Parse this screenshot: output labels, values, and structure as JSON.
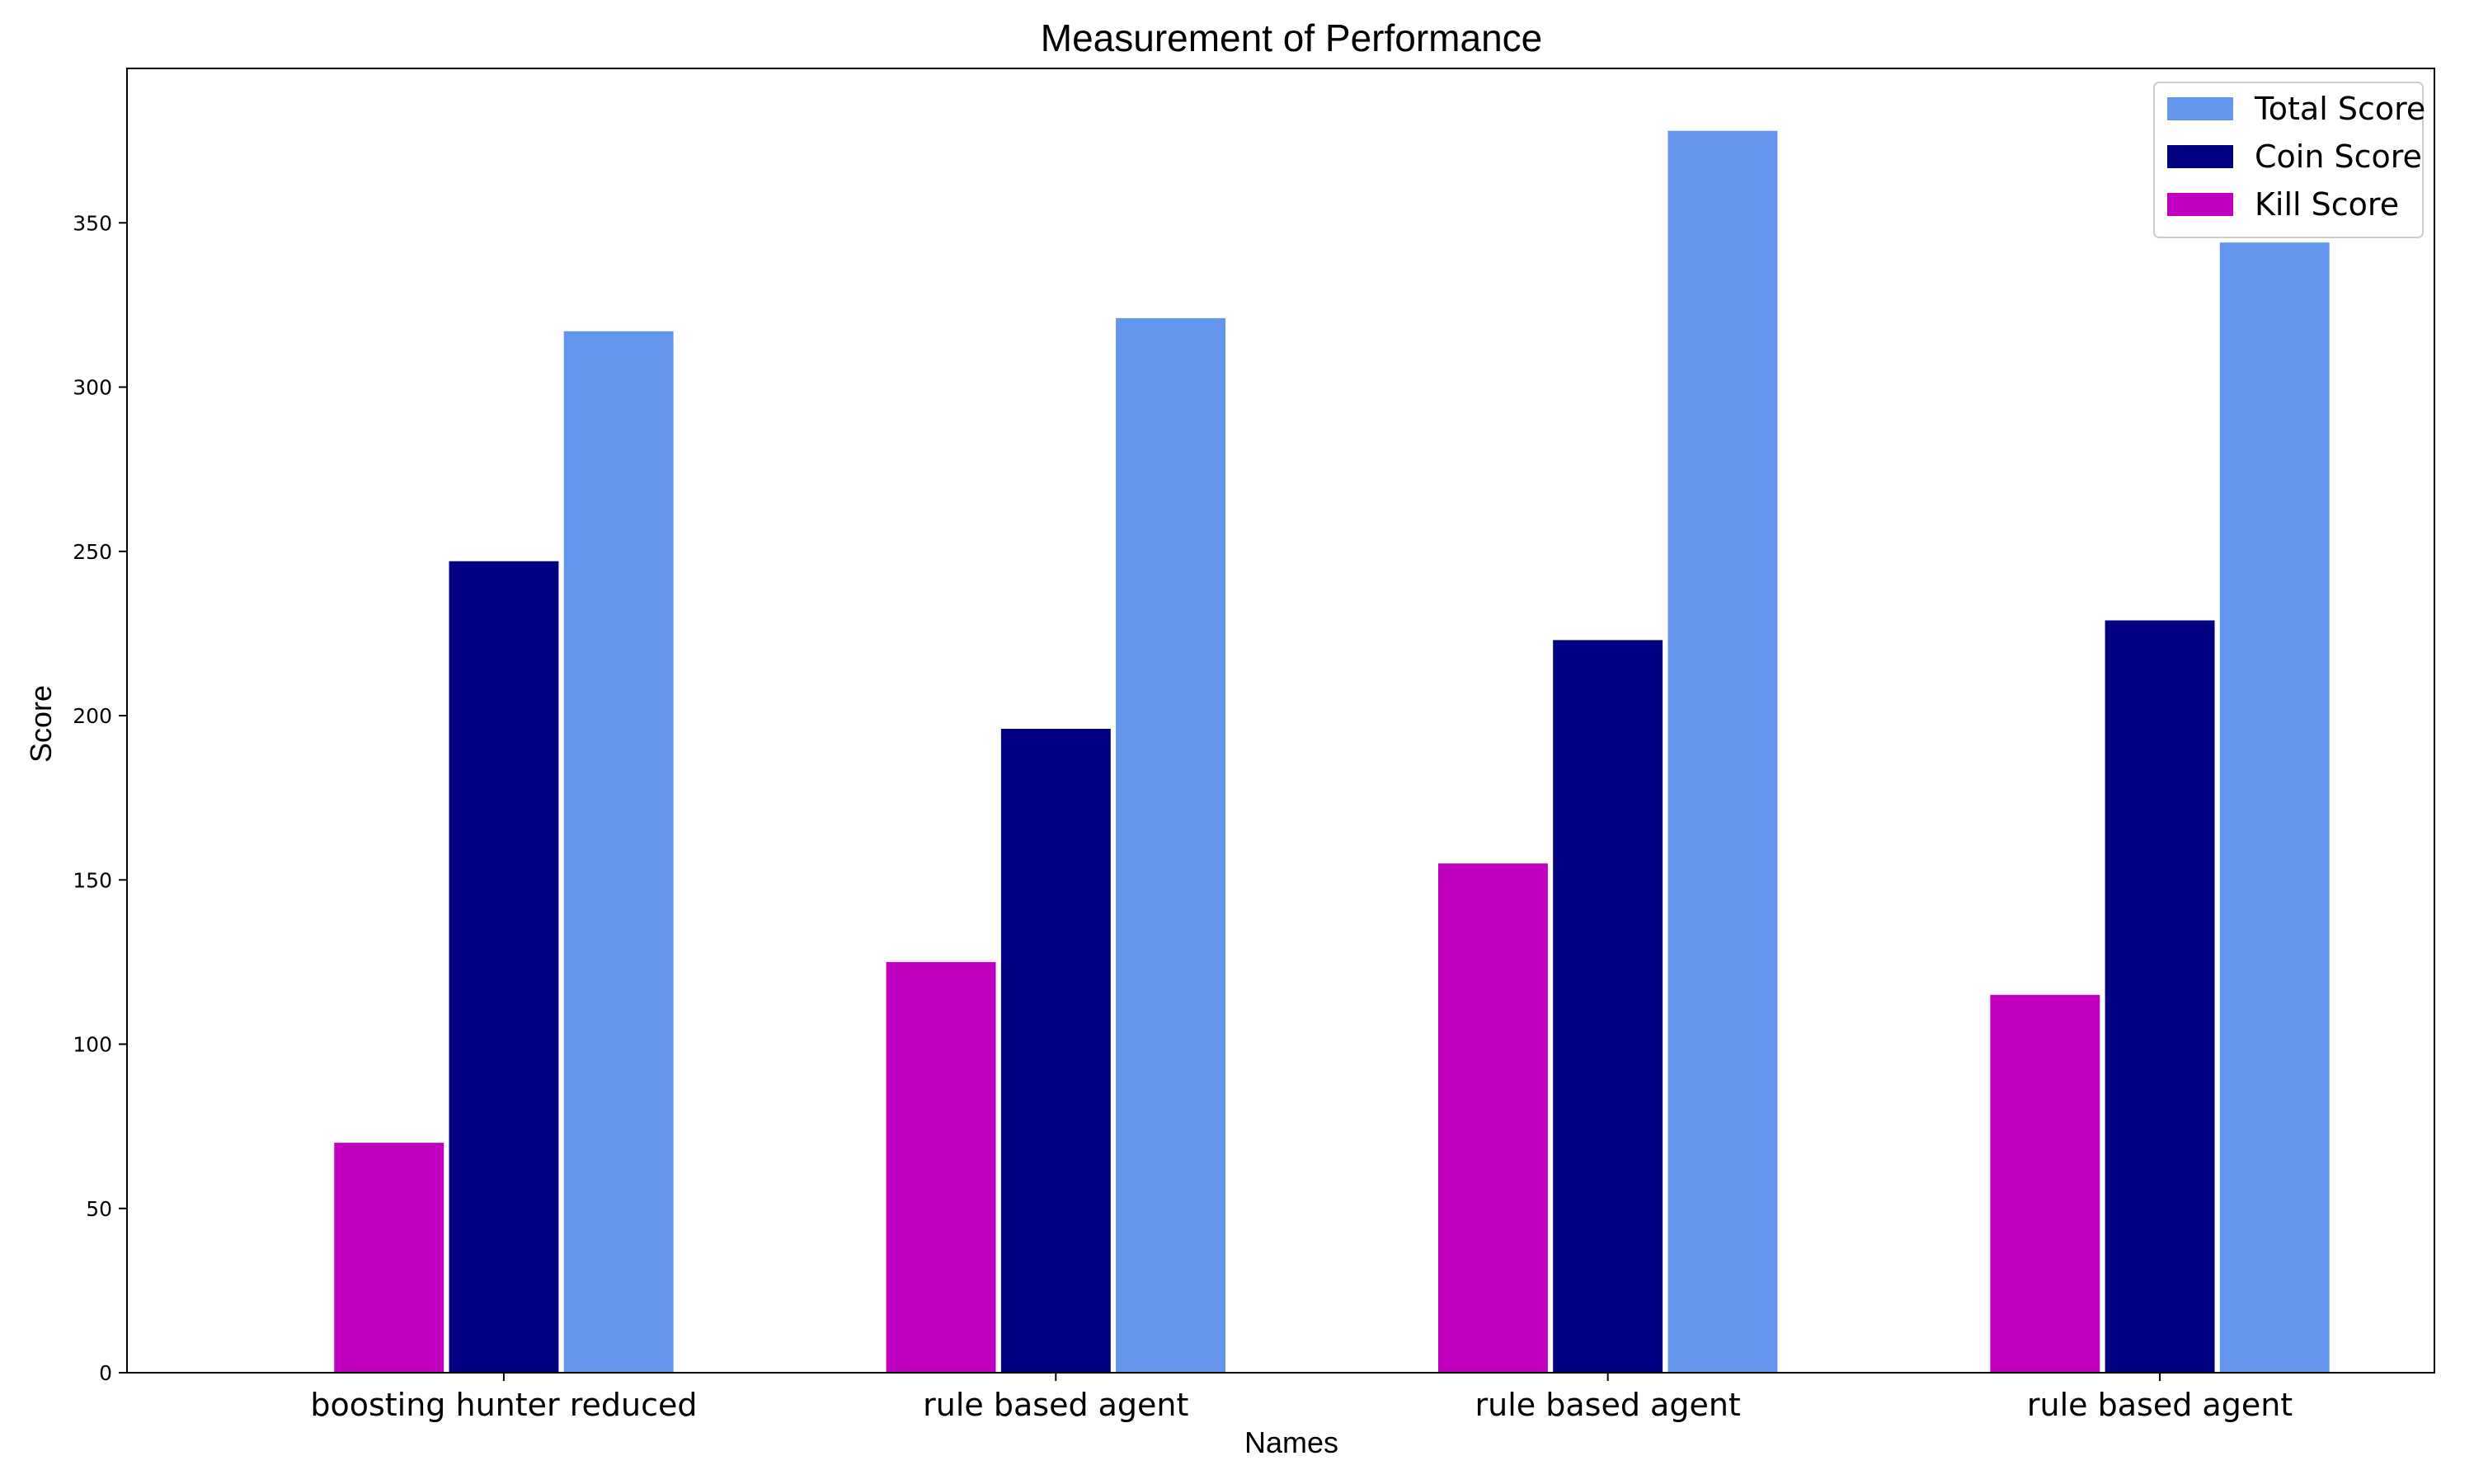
{
  "chart_data": {
    "type": "bar",
    "title": "Measurement of Performance",
    "xlabel": "Names",
    "ylabel": "Score",
    "categories": [
      "boosting hunter reduced",
      "rule based agent",
      "rule based agent",
      "rule based agent"
    ],
    "series": [
      {
        "name": "Kill Score",
        "color": "#bf00bf",
        "values": [
          70,
          125,
          155,
          115
        ]
      },
      {
        "name": "Coin Score",
        "color": "#000080",
        "values": [
          247,
          196,
          223,
          229
        ]
      },
      {
        "name": "Total Score",
        "color": "#6495ed",
        "values": [
          317,
          321,
          378,
          344
        ]
      }
    ],
    "legend_order": [
      "Total Score",
      "Coin Score",
      "Kill Score"
    ],
    "ylim": [
      0,
      397
    ],
    "yticks": [
      0,
      50,
      100,
      150,
      200,
      250,
      300,
      350
    ],
    "grid": false,
    "legend_position": "top-right"
  }
}
